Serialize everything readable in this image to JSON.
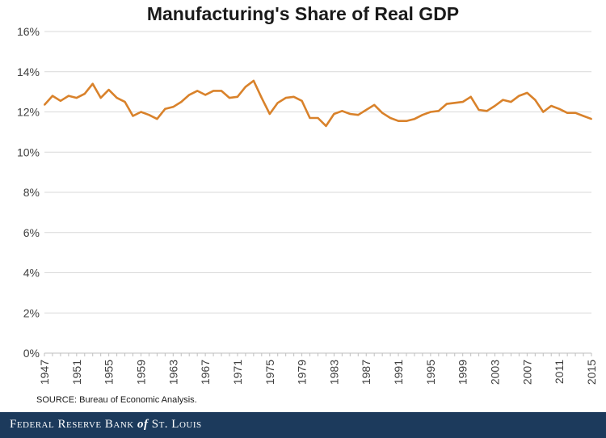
{
  "chart_data": {
    "type": "line",
    "title": "Manufacturing's Share of Real GDP",
    "xlabel": "",
    "ylabel": "",
    "ylim": [
      0,
      16
    ],
    "ytick_labels": [
      "0%",
      "2%",
      "4%",
      "6%",
      "8%",
      "10%",
      "12%",
      "14%",
      "16%"
    ],
    "xlim": [
      1947,
      2015
    ],
    "xtick_labels": [
      "1947",
      "1951",
      "1955",
      "1959",
      "1963",
      "1967",
      "1971",
      "1975",
      "1979",
      "1983",
      "1987",
      "1991",
      "1995",
      "1999",
      "2003",
      "2007",
      "2011",
      "2015"
    ],
    "grid": true,
    "line_color": "#d9822b",
    "series": [
      {
        "x": [
          1947,
          1948,
          1949,
          1950,
          1951,
          1952,
          1953,
          1954,
          1955,
          1956,
          1957,
          1958,
          1959,
          1960,
          1961,
          1962,
          1963,
          1964,
          1965,
          1966,
          1967,
          1968,
          1969,
          1970,
          1971,
          1972,
          1973,
          1974,
          1975,
          1976,
          1977,
          1978,
          1979,
          1980,
          1981,
          1982,
          1983,
          1984,
          1985,
          1986,
          1987,
          1988,
          1989,
          1990,
          1991,
          1992,
          1993,
          1994,
          1995,
          1996,
          1997,
          1998,
          1999,
          2000,
          2001,
          2002,
          2003,
          2004,
          2005,
          2006,
          2007,
          2008,
          2009,
          2010,
          2011,
          2012,
          2013,
          2014,
          2015
        ],
        "values": [
          12.35,
          12.8,
          12.55,
          12.8,
          12.7,
          12.9,
          13.4,
          12.7,
          13.1,
          12.7,
          12.5,
          11.8,
          12.0,
          11.85,
          11.65,
          12.15,
          12.25,
          12.5,
          12.85,
          13.05,
          12.85,
          13.05,
          13.05,
          12.7,
          12.75,
          13.25,
          13.55,
          12.7,
          11.9,
          12.45,
          12.7,
          12.75,
          12.55,
          11.7,
          11.7,
          11.3,
          11.9,
          12.05,
          11.9,
          11.85,
          12.1,
          12.35,
          11.95,
          11.7,
          11.55,
          11.55,
          11.65,
          11.85,
          12.0,
          12.05,
          12.4,
          12.45,
          12.5,
          12.75,
          12.1,
          12.05,
          12.3,
          12.6,
          12.5,
          12.8,
          12.95,
          12.6,
          12.0,
          12.3,
          12.15,
          11.95,
          11.95,
          11.8,
          11.65
        ]
      }
    ]
  },
  "source": "SOURCE: Bureau of Economic Analysis.",
  "footer": {
    "pre": "Federal Reserve Bank",
    "of": "of",
    "post": "St. Louis"
  }
}
